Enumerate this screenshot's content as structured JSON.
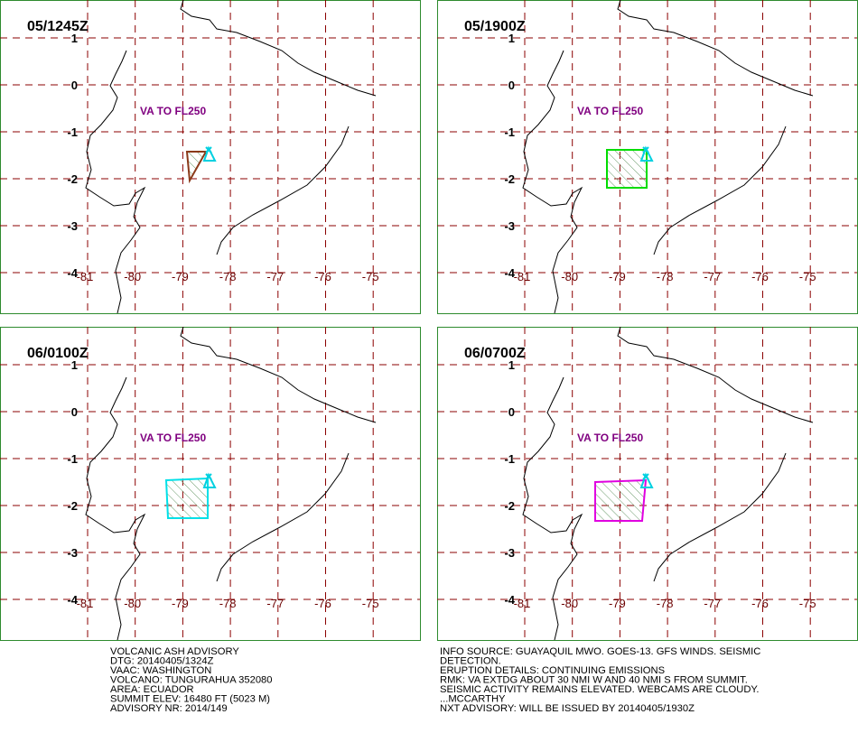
{
  "panels": [
    {
      "time": "05/1245Z",
      "annotation": "VA TO FL250",
      "color": "#8b3a1a"
    },
    {
      "time": "05/1900Z",
      "annotation": "VA TO FL250",
      "color": "#00dd00"
    },
    {
      "time": "06/0100Z",
      "annotation": "VA TO FL250",
      "color": "#00e0e8"
    },
    {
      "time": "06/0700Z",
      "annotation": "VA TO FL250",
      "color": "#e000e0"
    }
  ],
  "lat_labels": [
    1,
    0,
    -1,
    -2,
    -3,
    -4
  ],
  "lon_labels": [
    -81,
    -80,
    -79,
    -78,
    -77,
    -76,
    -75
  ],
  "advisory_left": [
    "VOLCANIC ASH ADVISORY",
    "DTG: 20140405/1324Z",
    "VAAC: WASHINGTON",
    "VOLCANO: TUNGURAHUA 352080",
    "AREA: ECUADOR",
    "SUMMIT ELEV: 16480 FT (5023 M)",
    "ADVISORY NR: 2014/149"
  ],
  "advisory_right": [
    "INFO SOURCE: GUAYAQUIL MWO. GOES-13. GFS WINDS. SEISMIC",
    "DETECTION.",
    "ERUPTION DETAILS: CONTINUING EMISSIONS",
    "RMK: VA EXTDG ABOUT 30 NMI W AND 40 NMI S FROM SUMMIT.",
    "SEISMIC ACTIVITY REMAINS ELEVATED. WEBCAMS ARE CLOUDY.",
    "...MCCARTHY",
    "NXT ADVISORY: WILL BE ISSUED BY 20140405/1930Z"
  ]
}
